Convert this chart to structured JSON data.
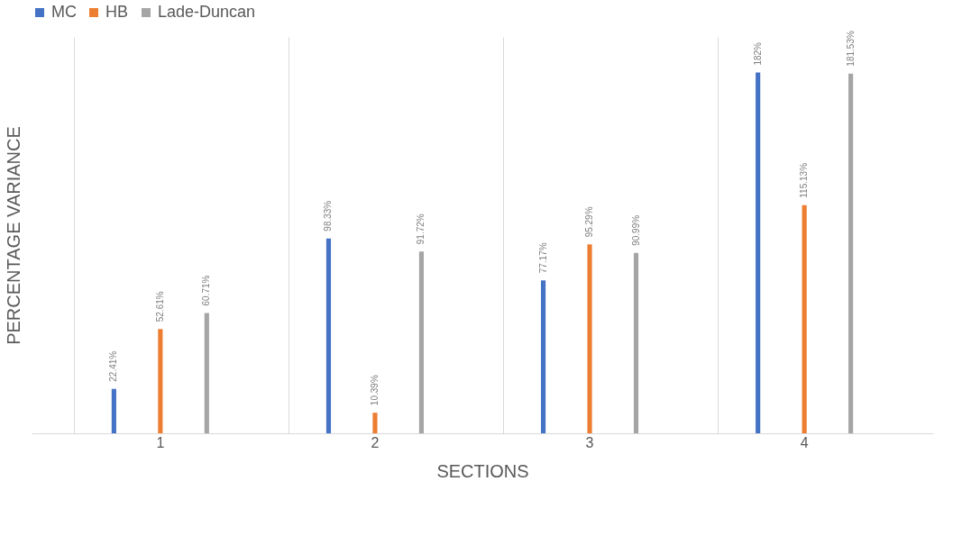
{
  "chart_data": {
    "type": "bar",
    "xlabel": "SECTIONS",
    "ylabel": "PERCENTAGE VARIANCE",
    "categories": [
      "1",
      "2",
      "3",
      "4"
    ],
    "series": [
      {
        "name": "MC",
        "color": "#4472c4",
        "values": [
          22.41,
          98.33,
          77.17,
          182
        ],
        "value_labels": [
          "22.41%",
          "98.33%",
          "77.17%",
          "182%"
        ]
      },
      {
        "name": "HB",
        "color": "#ed7d31",
        "values": [
          52.61,
          10.39,
          95.29,
          115.13
        ],
        "value_labels": [
          "52.61%",
          "10.39%",
          "95.29%",
          "115.13%"
        ]
      },
      {
        "name": "Lade-Duncan",
        "color": "#a5a5a5",
        "values": [
          60.71,
          91.72,
          90.99,
          181.53
        ],
        "value_labels": [
          "60.71%",
          "91.72%",
          "90.99%",
          "181.53%"
        ]
      }
    ],
    "legend": "top",
    "grid": "x"
  }
}
